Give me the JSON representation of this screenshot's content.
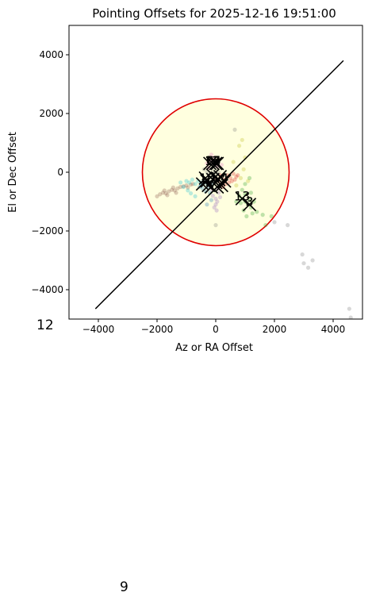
{
  "chart_data": {
    "type": "scatter",
    "title": "Pointing Offsets for 2025-12-16 19:51:00",
    "xlabel": "Az or RA Offset",
    "ylabel": "El or Dec Offset",
    "xlim": [
      -5000,
      5000
    ],
    "ylim": [
      -5000,
      5000
    ],
    "x_ticks": [
      -4000,
      -2000,
      0,
      2000,
      4000
    ],
    "y_ticks": [
      -4000,
      -2000,
      0,
      2000,
      4000
    ],
    "x_tick_labels": [
      "−4000",
      "−2000",
      "0",
      "2000",
      "4000"
    ],
    "y_tick_labels": [
      "−4000",
      "−2000",
      "0",
      "2000",
      "4000"
    ],
    "grid": false,
    "circle": {
      "center": [
        0,
        0
      ],
      "radius": 2500,
      "edge_color": "#e00000",
      "fill_color": "#ffffdf"
    },
    "diagonal_line": {
      "x": [
        -4100,
        4350
      ],
      "y": [
        -4650,
        3800
      ],
      "color": "#000000"
    },
    "clusters": [
      {
        "color": "#8c564b",
        "points": [
          [
            -1900,
            -750
          ],
          [
            -1800,
            -700
          ],
          [
            -1700,
            -720
          ],
          [
            -1600,
            -650
          ],
          [
            -1500,
            -600
          ],
          [
            -1400,
            -620
          ],
          [
            -1300,
            -550
          ],
          [
            -1200,
            -500
          ],
          [
            -1100,
            -480
          ],
          [
            -1000,
            -450
          ],
          [
            -950,
            -520
          ],
          [
            -850,
            -420
          ],
          [
            -780,
            -400
          ],
          [
            -2000,
            -820
          ],
          [
            -1650,
            -780
          ],
          [
            -1350,
            -700
          ],
          [
            -1750,
            -620
          ],
          [
            -1450,
            -520
          ]
        ]
      },
      {
        "color": "#17becf",
        "points": [
          [
            -1000,
            -300
          ],
          [
            -900,
            -350
          ],
          [
            -800,
            -250
          ],
          [
            -700,
            -400
          ],
          [
            -600,
            -300
          ],
          [
            -1100,
            -500
          ],
          [
            -500,
            -450
          ],
          [
            -1200,
            -350
          ],
          [
            -950,
            -620
          ],
          [
            -850,
            -720
          ],
          [
            -700,
            -820
          ]
        ]
      },
      {
        "color": "#1f77b4",
        "points": [
          [
            -500,
            -350
          ],
          [
            -400,
            -300
          ],
          [
            -300,
            -400
          ],
          [
            -200,
            -350
          ],
          [
            -100,
            -380
          ],
          [
            -450,
            -550
          ],
          [
            -350,
            -650
          ],
          [
            -250,
            -500
          ],
          [
            -300,
            -1100
          ],
          [
            -150,
            -950
          ],
          [
            -200,
            -700
          ],
          [
            -550,
            -500
          ]
        ]
      },
      {
        "color": "#9467bd",
        "points": [
          [
            -100,
            -800
          ],
          [
            0,
            -900
          ],
          [
            100,
            -700
          ],
          [
            50,
            -1000
          ],
          [
            -50,
            -1200
          ],
          [
            150,
            -850
          ],
          [
            0,
            -1100
          ],
          [
            -120,
            -600
          ],
          [
            80,
            -550
          ],
          [
            30,
            -1300
          ]
        ]
      },
      {
        "color": "#d62728",
        "points": [
          [
            0,
            -200
          ],
          [
            100,
            -300
          ],
          [
            200,
            -150
          ],
          [
            300,
            -250
          ],
          [
            400,
            -100
          ],
          [
            500,
            -200
          ],
          [
            600,
            -50
          ],
          [
            700,
            -150
          ],
          [
            350,
            -400
          ],
          [
            250,
            -500
          ],
          [
            450,
            -350
          ],
          [
            550,
            -300
          ],
          [
            150,
            -100
          ],
          [
            650,
            -250
          ],
          [
            750,
            -100
          ]
        ]
      },
      {
        "color": "#e377c2",
        "points": [
          [
            -300,
            300
          ],
          [
            -200,
            400
          ],
          [
            -100,
            350
          ],
          [
            0,
            300
          ],
          [
            100,
            450
          ],
          [
            -150,
            600
          ],
          [
            50,
            200
          ],
          [
            -50,
            500
          ],
          [
            200,
            250
          ],
          [
            -250,
            150
          ]
        ]
      },
      {
        "color": "#7f7f7f",
        "points": [
          [
            -300,
            0
          ],
          [
            -200,
            -100
          ],
          [
            -100,
            50
          ],
          [
            0,
            -50
          ],
          [
            100,
            0
          ],
          [
            -400,
            100
          ],
          [
            300,
            -100
          ],
          [
            -50,
            200
          ],
          [
            0,
            -1800
          ],
          [
            650,
            1450
          ],
          [
            2000,
            -1700
          ],
          [
            2450,
            -1800
          ],
          [
            2950,
            -2800
          ],
          [
            3000,
            -3100
          ],
          [
            3150,
            -3250
          ],
          [
            3300,
            -3000
          ],
          [
            4550,
            -4650
          ],
          [
            4600,
            -4950
          ]
        ]
      },
      {
        "color": "#bcbd22",
        "points": [
          [
            900,
            1100
          ],
          [
            800,
            900
          ],
          [
            1000,
            500
          ],
          [
            850,
            -200
          ],
          [
            950,
            100
          ],
          [
            1100,
            -300
          ],
          [
            600,
            350
          ],
          [
            700,
            -450
          ]
        ]
      },
      {
        "color": "#2ca02c",
        "points": [
          [
            800,
            -800
          ],
          [
            900,
            -900
          ],
          [
            1000,
            -1000
          ],
          [
            1100,
            -1100
          ],
          [
            1200,
            -1200
          ],
          [
            1000,
            -750
          ],
          [
            850,
            -1050
          ],
          [
            1150,
            -950
          ],
          [
            1250,
            -1400
          ],
          [
            950,
            -1300
          ],
          [
            700,
            -1000
          ],
          [
            1300,
            -1000
          ],
          [
            1050,
            -1500
          ],
          [
            900,
            -600
          ],
          [
            1200,
            -700
          ],
          [
            1400,
            -1350
          ],
          [
            1600,
            -1450
          ],
          [
            1900,
            -1500
          ],
          [
            1700,
            -1800
          ],
          [
            1150,
            -200
          ],
          [
            1000,
            -400
          ]
        ]
      }
    ],
    "markers": [
      {
        "label": "6",
        "x": -200,
        "y": 300
      },
      {
        "label": "12",
        "x": -100,
        "y": 300
      },
      {
        "label": "2",
        "x": 0,
        "y": 300
      },
      {
        "label": "5",
        "x": 50,
        "y": 300
      },
      {
        "label": "10",
        "x": -300,
        "y": -300
      },
      {
        "label": "1",
        "x": -100,
        "y": -250
      },
      {
        "label": "4",
        "x": 300,
        "y": -300
      },
      {
        "label": "13",
        "x": 900,
        "y": -900
      },
      {
        "label": "3",
        "x": 1150,
        "y": -1100
      }
    ],
    "unlabeled_markers": [
      [
        -450,
        -400
      ],
      [
        -250,
        -450
      ],
      [
        -350,
        -200
      ],
      [
        -150,
        -500
      ],
      [
        0,
        -350
      ],
      [
        50,
        -500
      ],
      [
        200,
        -450
      ],
      [
        100,
        -250
      ],
      [
        -100,
        -100
      ],
      [
        150,
        -150
      ]
    ],
    "extra_labels": [
      "12",
      "9"
    ]
  }
}
